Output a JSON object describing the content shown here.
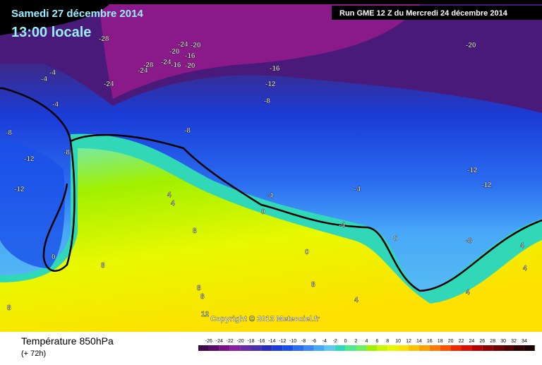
{
  "header": {
    "date": "Samedi 27 décembre 2014",
    "time": "13:00 locale",
    "run": "Run GME 12 Z du Mercredi 24 décembre 2014"
  },
  "map": {
    "copyright": "Copyright © 2013 Meteociel.fr",
    "contour_labels": [
      "-28",
      "-24",
      "-20",
      "-20",
      "-16",
      "-24",
      "-28",
      "-16",
      "-20",
      "-24",
      "-20",
      "-16",
      "-12",
      "-8",
      "-24",
      "-4",
      "-4",
      "-4",
      "-8",
      "-8",
      "-8",
      "-12",
      "-12",
      "-12",
      "-12",
      "-4",
      "-4",
      "0",
      "-4",
      "4",
      "4",
      "8",
      "0",
      "8",
      "8",
      "8",
      "8",
      "12",
      "0",
      "8",
      "4",
      "4",
      "-8",
      "4",
      "4",
      "0"
    ]
  },
  "footer": {
    "title": "Température 850hPa",
    "lead": "(+ 72h)",
    "scale": [
      "-26",
      "-24",
      "-22",
      "-20",
      "-18",
      "-16",
      "-14",
      "-12",
      "-10",
      "-8",
      "-6",
      "-4",
      "-2",
      "0",
      "2",
      "4",
      "6",
      "8",
      "10",
      "12",
      "14",
      "16",
      "18",
      "20",
      "22",
      "24",
      "26",
      "28",
      "30",
      "32",
      "34"
    ]
  }
}
